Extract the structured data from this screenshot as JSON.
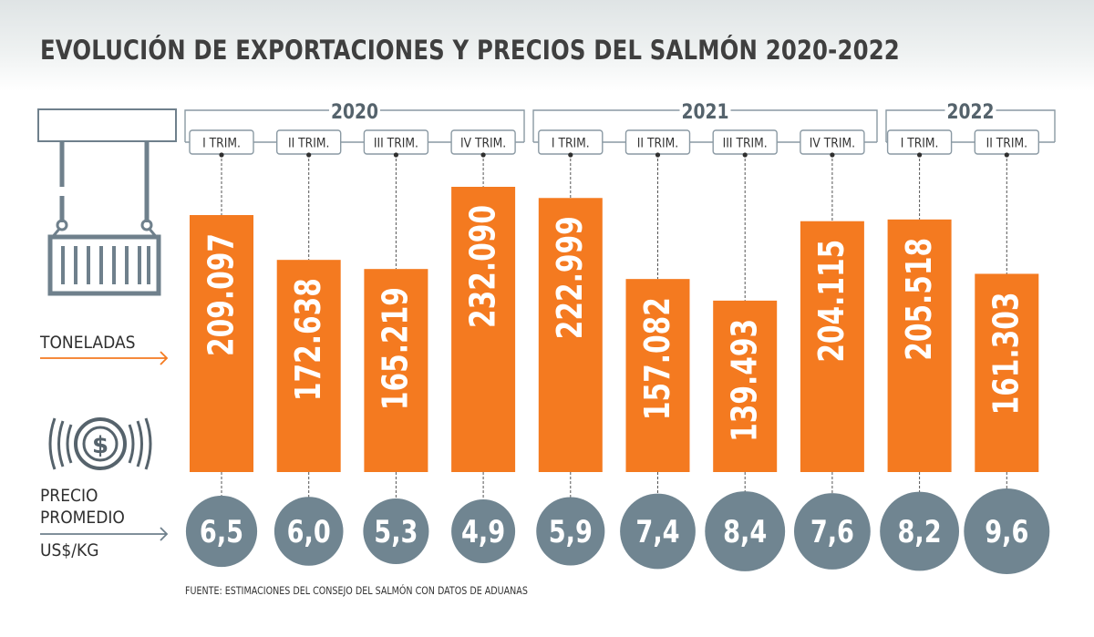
{
  "title": "EVOLUCIÓN DE EXPORTACIONES Y PRECIOS DEL SALMÓN 2020-2022",
  "source": "FUENTE: ESTIMACIONES DEL CONSEJO DEL SALMÓN CON DATOS DE ADUANAS",
  "labels": {
    "toneladas": "TONELADAS",
    "precio_line1": "PRECIO",
    "precio_line2": "PROMEDIO",
    "precio_line3": "US$/KG"
  },
  "icons": {
    "tonnage": "shipping-container-icon",
    "price": "dollar-coin-icon"
  },
  "colors": {
    "bar": "#f47a20",
    "circle": "#708591",
    "text": "#3f3f3f",
    "arrow": "#f47a20"
  },
  "chart_data": {
    "type": "bar",
    "years": [
      {
        "label": "2020",
        "quarters": 4
      },
      {
        "label": "2021",
        "quarters": 4
      },
      {
        "label": "2022",
        "quarters": 2
      }
    ],
    "categories": [
      "I TRIM.",
      "II TRIM.",
      "III TRIM.",
      "IV TRIM.",
      "I TRIM.",
      "II TRIM.",
      "III TRIM.",
      "IV TRIM.",
      "I TRIM.",
      "II TRIM."
    ],
    "series": [
      {
        "name": "TONELADAS",
        "values": [
          209097,
          172638,
          165219,
          232090,
          222999,
          157082,
          139493,
          204115,
          205518,
          161303
        ],
        "value_labels": [
          "209.097",
          "172.638",
          "165.219",
          "232.090",
          "222.999",
          "157.082",
          "139.493",
          "204.115",
          "205.518",
          "161.303"
        ]
      },
      {
        "name": "PRECIO PROMEDIO US$/KG",
        "values": [
          6.5,
          6.0,
          5.3,
          4.9,
          5.9,
          7.4,
          8.4,
          7.6,
          8.2,
          9.6
        ],
        "value_labels": [
          "6,5",
          "6,0",
          "5,3",
          "4,9",
          "5,9",
          "7,4",
          "8,4",
          "7,6",
          "8,2",
          "9,6"
        ]
      }
    ]
  }
}
